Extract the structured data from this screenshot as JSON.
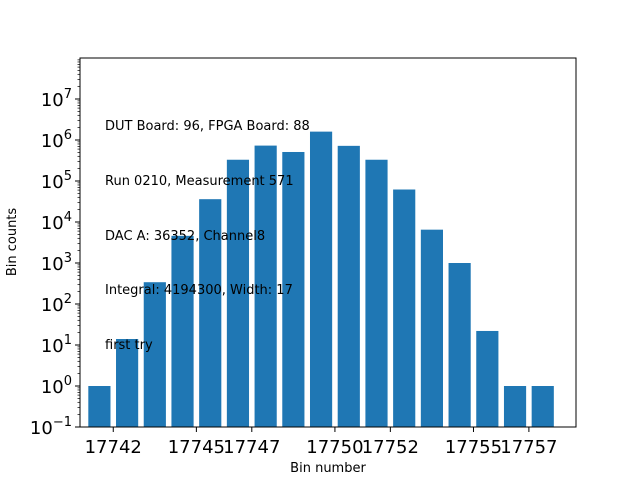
{
  "chart_data": {
    "type": "bar",
    "title": "",
    "xlabel": "Bin number",
    "ylabel": "Bin counts",
    "y_scale": "log",
    "ylim": [
      0.1,
      100000000
    ],
    "xlim": [
      17740.8,
      17758.7
    ],
    "x_ticks": [
      {
        "value": 17742,
        "label": "17742"
      },
      {
        "value": 17745,
        "label": "17745"
      },
      {
        "value": 17747,
        "label": "17747"
      },
      {
        "value": 17750,
        "label": "17750"
      },
      {
        "value": 17752,
        "label": "17752"
      },
      {
        "value": 17755,
        "label": "17755"
      },
      {
        "value": 17757,
        "label": "17757"
      }
    ],
    "y_ticks": [
      {
        "value": 0.1,
        "base": "10",
        "exp": "−1"
      },
      {
        "value": 1,
        "base": "10",
        "exp": "0"
      },
      {
        "value": 10,
        "base": "10",
        "exp": "1"
      },
      {
        "value": 100,
        "base": "10",
        "exp": "2"
      },
      {
        "value": 1000,
        "base": "10",
        "exp": "3"
      },
      {
        "value": 10000,
        "base": "10",
        "exp": "4"
      },
      {
        "value": 100000,
        "base": "10",
        "exp": "5"
      },
      {
        "value": 1000000,
        "base": "10",
        "exp": "6"
      },
      {
        "value": 10000000,
        "base": "10",
        "exp": "7"
      }
    ],
    "x": [
      17741.5,
      17742.5,
      17743.5,
      17744.5,
      17745.5,
      17746.5,
      17747.5,
      17748.5,
      17749.5,
      17750.5,
      17751.5,
      17752.5,
      17753.5,
      17754.5,
      17755.5,
      17756.5,
      17757.5
    ],
    "values": [
      1,
      14,
      340,
      4600,
      36000,
      330000,
      730000,
      510000,
      1600000,
      720000,
      330000,
      62000,
      6500,
      1000,
      22,
      1,
      1
    ],
    "bar_color": "#1f77b4",
    "grid": false,
    "annotations": [
      "DUT Board: 96, FPGA Board: 88",
      "Run 0210, Measurement 571",
      "DAC A: 36352, Channel8",
      "Integral: 4194300, Width: 17",
      "first try"
    ]
  }
}
